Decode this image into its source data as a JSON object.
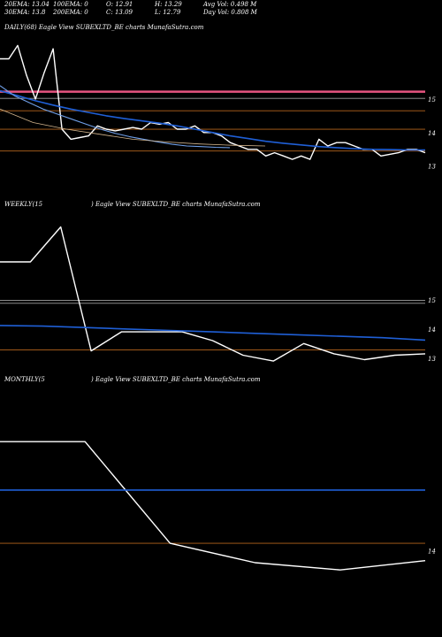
{
  "header": {
    "row1": [
      "20EMA: 13.04",
      "100EMA: 0",
      "O: 12.91",
      "H: 13.29",
      "Avg Vol: 0.498 M"
    ],
    "row2": [
      "30EMA: 13.8",
      "200EMA: 0",
      "C: 13.09",
      "L: 12.79",
      "Day Vol: 0.808 M"
    ]
  },
  "colors": {
    "background": "#000000",
    "price": "#ffffff",
    "ema": "#1f5fd6",
    "ema_light": "#6f9fe8",
    "level": "#b5651d",
    "pink": "#e75480",
    "grey": "#9e9e9e",
    "tan": "#d2b48c"
  },
  "chart_data": [
    {
      "type": "line",
      "title": "DAILY(68) Eagle  View  SUBEXLTD_BE charts MunafaSutra.com",
      "yticks": [
        "15",
        "14",
        "13"
      ],
      "ylim": [
        12.2,
        16.9
      ],
      "series": [
        {
          "role": "price",
          "values": [
            16.2,
            16.2,
            16.6,
            15.7,
            15.0,
            15.8,
            16.5,
            14.1,
            13.8,
            13.85,
            13.9,
            14.2,
            14.1,
            14.05,
            14.1,
            14.15,
            14.1,
            14.3,
            14.25,
            14.3,
            14.1,
            14.1,
            14.2,
            14.0,
            14.0,
            13.9,
            13.7,
            13.6,
            13.5,
            13.5,
            13.3,
            13.4,
            13.3,
            13.2,
            13.3,
            13.2,
            13.8,
            13.6,
            13.7,
            13.7,
            13.6,
            13.5,
            13.5,
            13.3,
            13.35,
            13.4,
            13.5,
            13.5,
            13.4
          ]
        },
        {
          "role": "ema",
          "values": [
            15.25,
            15.1,
            14.95,
            14.82,
            14.7,
            14.6,
            14.5,
            14.42,
            14.35,
            14.28,
            14.2,
            14.1,
            14.0,
            13.9,
            13.82,
            13.74,
            13.68,
            13.63,
            13.58,
            13.55,
            13.52,
            13.5,
            13.49,
            13.48,
            13.48
          ]
        },
        {
          "role": "ema-light",
          "values": [
            15.4,
            15.1,
            14.9,
            14.7,
            14.55,
            14.4,
            14.25,
            14.1,
            13.98,
            13.88,
            13.8,
            13.72,
            13.65,
            13.6,
            13.58,
            13.56,
            13.55
          ]
        },
        {
          "role": "grey-average",
          "values": [
            14.7,
            14.3,
            14.1,
            13.95,
            13.8,
            13.72,
            13.66,
            13.62,
            13.6
          ]
        }
      ],
      "levels": [
        {
          "value": 15.22,
          "color": "pink"
        },
        {
          "value": 15.02,
          "color": "grey"
        },
        {
          "value": 14.65,
          "color": "level"
        },
        {
          "value": 14.1,
          "color": "level"
        },
        {
          "value": 13.45,
          "color": "level"
        }
      ]
    },
    {
      "type": "line",
      "title_left": "WEEKLY(15",
      "title_right": ") Eagle  View  SUBEXLTD_BE charts MunafaSutra.com",
      "yticks": [
        "15",
        "14",
        "13"
      ],
      "ylim": [
        12.6,
        18.0
      ],
      "series": [
        {
          "role": "price",
          "values": [
            16.3,
            16.3,
            17.5,
            13.25,
            13.9,
            13.9,
            13.9,
            13.6,
            13.1,
            12.9,
            13.5,
            13.15,
            12.95,
            13.1,
            13.15
          ]
        },
        {
          "role": "ema",
          "values": [
            14.12,
            14.1,
            14.05,
            14.0,
            13.95,
            13.9,
            13.85,
            13.8,
            13.75,
            13.7,
            13.62
          ]
        }
      ],
      "levels": [
        {
          "value": 14.98,
          "color": "grey"
        },
        {
          "value": 14.88,
          "color": "grey"
        },
        {
          "value": 13.28,
          "color": "level"
        }
      ]
    },
    {
      "type": "line",
      "title_left": "MONTHLY(5",
      "title_right": ") Eagle  View  SUBEXLTD_BE charts MunafaSutra.com",
      "yticks": [
        "14"
      ],
      "ylim": [
        11.9,
        18.0
      ],
      "series": [
        {
          "role": "price",
          "values": [
            16.7,
            16.7,
            14.18,
            13.7,
            13.52,
            13.75
          ]
        },
        {
          "role": "ema",
          "values": [
            15.5,
            15.5
          ]
        }
      ],
      "levels": [
        {
          "value": 14.18,
          "color": "level"
        }
      ]
    }
  ]
}
